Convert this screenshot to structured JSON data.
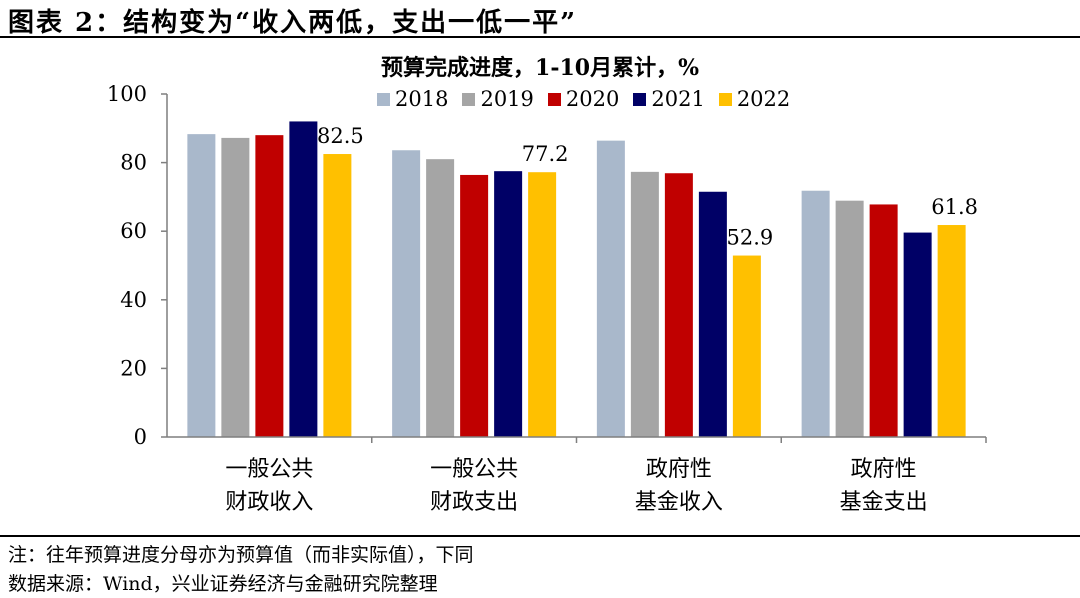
{
  "header": {
    "title": "图表 2：结构变为“收入两低，支出一低一平”"
  },
  "chart_data": {
    "type": "bar",
    "title": "预算完成进度，1-10月累计，%",
    "categories": [
      [
        "一般公共",
        "财政收入"
      ],
      [
        "一般公共",
        "财政支出"
      ],
      [
        "政府性",
        "基金收入"
      ],
      [
        "政府性",
        "基金支出"
      ]
    ],
    "series": [
      {
        "name": "2018",
        "color": "#A9B8CB",
        "values": [
          88.3,
          83.6,
          86.4,
          71.8
        ]
      },
      {
        "name": "2019",
        "color": "#A5A5A5",
        "values": [
          87.2,
          81.0,
          77.3,
          68.9
        ]
      },
      {
        "name": "2020",
        "color": "#C00000",
        "values": [
          88.0,
          76.4,
          76.9,
          67.8
        ]
      },
      {
        "name": "2021",
        "color": "#000066",
        "values": [
          92.0,
          77.5,
          71.5,
          59.6
        ]
      },
      {
        "name": "2022",
        "color": "#FFC000",
        "values": [
          82.5,
          77.2,
          52.9,
          61.8
        ]
      }
    ],
    "data_labels": [
      "82.5",
      "77.2",
      "52.9",
      "61.8"
    ],
    "y_ticks": [
      0,
      20,
      40,
      60,
      80,
      100
    ],
    "ylim": [
      0,
      100
    ],
    "legend_position": "top"
  },
  "footer": {
    "note": "注：往年预算进度分母亦为预算值（而非实际值），下同",
    "source": "数据来源：Wind，兴业证券经济与金融研究院整理"
  }
}
